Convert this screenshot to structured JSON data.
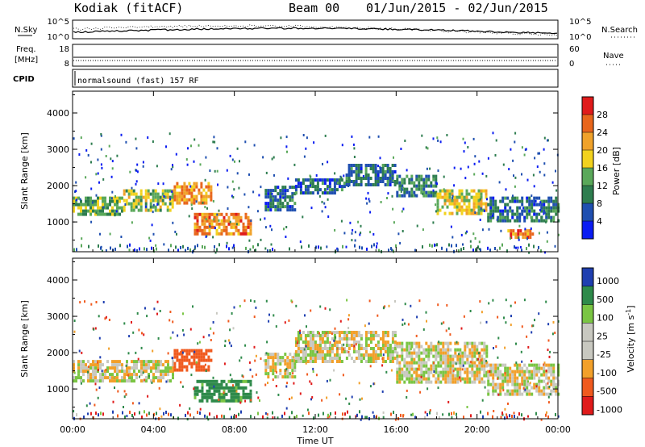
{
  "header": {
    "station": "Kodiak (fitACF)",
    "beam": "Beam 00",
    "date_range": "01/Jun/2015 - 02/Jun/2015"
  },
  "nsky_panel": {
    "left_label": "N.Sky",
    "right_label": "N.Search",
    "left_ticks": [
      "10^5",
      "10^0"
    ],
    "right_ticks": [
      "10^5",
      "10^0"
    ]
  },
  "freq_panel": {
    "left_label_1": "Freq.",
    "left_label_2": "[MHz]",
    "right_label": "Nave",
    "left_ticks": [
      "18",
      "8"
    ],
    "right_ticks": [
      "60",
      "0"
    ]
  },
  "cpid_panel": {
    "label": "CPID",
    "program": "normalsound (fast) 157 RF"
  },
  "colors": {
    "power_scale": [
      "#0a1cf2",
      "#1f4fb0",
      "#2e7d4f",
      "#5aa85a",
      "#f2d21e",
      "#f0a22a",
      "#e8661c",
      "#e01b1b"
    ],
    "velocity_scale": [
      "#e01b1b",
      "#f05a1e",
      "#f2a02a",
      "#c8c8c0",
      "#c8c8c0",
      "#7ac543",
      "#2e8a4a",
      "#1f3fb0"
    ]
  },
  "chart_data": [
    {
      "type": "heatmap",
      "name": "power",
      "ylabel": "Slant Range [km]",
      "ylim": [
        180,
        4600
      ],
      "yticks": [
        "1000",
        "2000",
        "3000",
        "4000"
      ],
      "xlim": [
        0,
        24
      ],
      "colorbar": {
        "label": "Power [dB]",
        "ticks": [
          "4",
          "8",
          "12",
          "16",
          "20",
          "24",
          "28"
        ],
        "range": [
          0,
          32
        ]
      },
      "features": [
        {
          "t0": 0,
          "t1": 2.5,
          "r0": 1250,
          "r1": 1700,
          "value": 14
        },
        {
          "t0": 2.5,
          "t1": 5.0,
          "r0": 1350,
          "r1": 1900,
          "value": 16
        },
        {
          "t0": 5.0,
          "t1": 6.8,
          "r0": 1500,
          "r1": 2100,
          "value": 22
        },
        {
          "t0": 6.0,
          "t1": 8.8,
          "r0": 650,
          "r1": 1250,
          "value": 24
        },
        {
          "t0": 9.5,
          "t1": 11.0,
          "r0": 1300,
          "r1": 2000,
          "value": 8
        },
        {
          "t0": 11.0,
          "t1": 13.5,
          "r0": 1800,
          "r1": 2200,
          "value": 8
        },
        {
          "t0": 13.5,
          "t1": 16.0,
          "r0": 2000,
          "r1": 2600,
          "value": 8
        },
        {
          "t0": 16.0,
          "t1": 18.0,
          "r0": 1700,
          "r1": 2300,
          "value": 10
        },
        {
          "t0": 18.0,
          "t1": 20.5,
          "r0": 1200,
          "r1": 1900,
          "value": 18
        },
        {
          "t0": 20.5,
          "t1": 24.0,
          "r0": 1000,
          "r1": 1700,
          "value": 8
        },
        {
          "t0": 21.5,
          "t1": 22.8,
          "r0": 550,
          "r1": 800,
          "value": 24
        }
      ]
    },
    {
      "type": "heatmap",
      "name": "velocity",
      "ylabel": "Slant Range [km]",
      "ylim": [
        180,
        4600
      ],
      "yticks": [
        "1000",
        "2000",
        "3000",
        "4000"
      ],
      "xlim": [
        0,
        24
      ],
      "xlabel": "Time UT",
      "xticks": [
        "00:00",
        "04:00",
        "08:00",
        "12:00",
        "16:00",
        "20:00",
        "00:00"
      ],
      "colorbar": {
        "label": "Velocity [m s^-1]",
        "ticks": [
          "1000",
          "500",
          "100",
          "25",
          "-25",
          "-100",
          "-500",
          "-1000"
        ]
      },
      "features": [
        {
          "t0": 0,
          "t1": 5.0,
          "r0": 1250,
          "r1": 1800,
          "value": 0
        },
        {
          "t0": 5.0,
          "t1": 6.8,
          "r0": 1500,
          "r1": 2100,
          "value": -200
        },
        {
          "t0": 6.0,
          "t1": 8.8,
          "r0": 650,
          "r1": 1250,
          "value": 150
        },
        {
          "t0": 9.5,
          "t1": 11.0,
          "r0": 1300,
          "r1": 2000,
          "value": 0
        },
        {
          "t0": 11.0,
          "t1": 16.0,
          "r0": 1800,
          "r1": 2600,
          "value": 0
        },
        {
          "t0": 16.0,
          "t1": 20.5,
          "r0": 1200,
          "r1": 2300,
          "value": 0
        },
        {
          "t0": 20.5,
          "t1": 24.0,
          "r0": 900,
          "r1": 1700,
          "value": 0
        }
      ]
    }
  ]
}
